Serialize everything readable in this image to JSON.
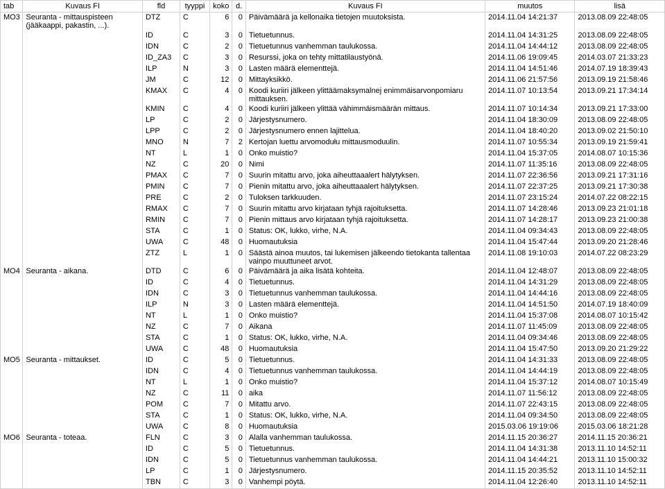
{
  "headers": {
    "tab": "tab",
    "kuvaus1": "Kuvaus FI",
    "fld": "fld",
    "tyyppi": "tyyppi",
    "koko": "koko",
    "d": "d.",
    "kuvaus2": "Kuvaus FI",
    "muutos": "muutos",
    "lisa": "lisä"
  },
  "rows": [
    {
      "tab": "MO3",
      "kuvaus1": "Seuranta - mittauspisteen (jääkaappi, pakastin, ...).",
      "fld": "DTZ",
      "tyyppi": "C",
      "koko": "6",
      "d": "0",
      "kuvaus2": "Päivämäärä ja kellonaika tietojen muutoksista.",
      "muutos": "2014.11.04 14:21:37",
      "lisa": "2013.08.09 22:48:05"
    },
    {
      "tab": "",
      "kuvaus1": "",
      "fld": "ID",
      "tyyppi": "C",
      "koko": "3",
      "d": "0",
      "kuvaus2": "Tietuetunnus.",
      "muutos": "2014.11.04 14:31:25",
      "lisa": "2013.08.09 22:48:05"
    },
    {
      "tab": "",
      "kuvaus1": "",
      "fld": "IDN",
      "tyyppi": "C",
      "koko": "2",
      "d": "0",
      "kuvaus2": "Tietuetunnus vanhemman taulukossa.",
      "muutos": "2014.11.04 14:44:12",
      "lisa": "2013.08.09 22:48:05"
    },
    {
      "tab": "",
      "kuvaus1": "",
      "fld": "ID_ZA3",
      "tyyppi": "C",
      "koko": "3",
      "d": "0",
      "kuvaus2": "Resurssi, joka on tehty mittatilaustyönä.",
      "muutos": "2014.11.06 19:09:45",
      "lisa": "2014.03.07 21:33:23"
    },
    {
      "tab": "",
      "kuvaus1": "",
      "fld": "ILP",
      "tyyppi": "N",
      "koko": "3",
      "d": "0",
      "kuvaus2": "Lasten määrä elementtejä.",
      "muutos": "2014.11.04 14:51:46",
      "lisa": "2014.07.19 18:39:43"
    },
    {
      "tab": "",
      "kuvaus1": "",
      "fld": "JM",
      "tyyppi": "C",
      "koko": "12",
      "d": "0",
      "kuvaus2": "Mittayksikkö.",
      "muutos": "2014.11.06 21:57:56",
      "lisa": "2013.09.19 21:58:46"
    },
    {
      "tab": "",
      "kuvaus1": "",
      "fld": "KMAX",
      "tyyppi": "C",
      "koko": "4",
      "d": "0",
      "kuvaus2": "Koodi kuriiri jälkeen ylittäämaksymalnej enimmäisarvonpomiaru mittauksen.",
      "muutos": "2014.11.07 10:13:54",
      "lisa": "2013.09.21 17:34:14"
    },
    {
      "tab": "",
      "kuvaus1": "",
      "fld": "KMIN",
      "tyyppi": "C",
      "koko": "4",
      "d": "0",
      "kuvaus2": "Koodi kuriiri jälkeen ylittää vähimmäismäärän mittaus.",
      "muutos": "2014.11.07 10:14:34",
      "lisa": "2013.09.21 17:33:00"
    },
    {
      "tab": "",
      "kuvaus1": "",
      "fld": "LP",
      "tyyppi": "C",
      "koko": "2",
      "d": "0",
      "kuvaus2": "Järjestysnumero.",
      "muutos": "2014.11.04 18:30:09",
      "lisa": "2013.08.09 22:48:05"
    },
    {
      "tab": "",
      "kuvaus1": "",
      "fld": "LPP",
      "tyyppi": "C",
      "koko": "2",
      "d": "0",
      "kuvaus2": "Järjestysnumero ennen lajittelua.",
      "muutos": "2014.11.04 18:40:20",
      "lisa": "2013.09.02 21:50:10"
    },
    {
      "tab": "",
      "kuvaus1": "",
      "fld": "MNO",
      "tyyppi": "N",
      "koko": "7",
      "d": "2",
      "kuvaus2": "Kertojan luettu arvomodułu mittausmoduulin.",
      "muutos": "2014.11.07 10:55:34",
      "lisa": "2013.09.19 21:59:41"
    },
    {
      "tab": "",
      "kuvaus1": "",
      "fld": "NT",
      "tyyppi": "L",
      "koko": "1",
      "d": "0",
      "kuvaus2": "Onko muistio?",
      "muutos": "2014.11.04 15:37:05",
      "lisa": "2014.08.07 10:15:36"
    },
    {
      "tab": "",
      "kuvaus1": "",
      "fld": "NZ",
      "tyyppi": "C",
      "koko": "20",
      "d": "0",
      "kuvaus2": "Nimi",
      "muutos": "2014.11.07 11:35:16",
      "lisa": "2013.08.09 22:48:05"
    },
    {
      "tab": "",
      "kuvaus1": "",
      "fld": "PMAX",
      "tyyppi": "C",
      "koko": "7",
      "d": "0",
      "kuvaus2": "Suurin mitattu arvo, joka aiheuttaaalert hälytyksen.",
      "muutos": "2014.11.07 22:36:56",
      "lisa": "2013.09.21 17:31:16"
    },
    {
      "tab": "",
      "kuvaus1": "",
      "fld": "PMIN",
      "tyyppi": "C",
      "koko": "7",
      "d": "0",
      "kuvaus2": "Pienin mitattu arvo, joka aiheuttaaalert hälytyksen.",
      "muutos": "2014.11.07 22:37:25",
      "lisa": "2013.09.21 17:30:38"
    },
    {
      "tab": "",
      "kuvaus1": "",
      "fld": "PRE",
      "tyyppi": "C",
      "koko": "2",
      "d": "0",
      "kuvaus2": "Tuloksen tarkkuuden.",
      "muutos": "2014.11.07 23:15:24",
      "lisa": "2014.07.22 08:22:15"
    },
    {
      "tab": "",
      "kuvaus1": "",
      "fld": "RMAX",
      "tyyppi": "C",
      "koko": "7",
      "d": "0",
      "kuvaus2": "Suurin mitattu arvo kirjataan tyhjä rajoituksetta.",
      "muutos": "2014.11.07 14:28:46",
      "lisa": "2013.09.23 21:01:18"
    },
    {
      "tab": "",
      "kuvaus1": "",
      "fld": "RMIN",
      "tyyppi": "C",
      "koko": "7",
      "d": "0",
      "kuvaus2": "Pienin mittaus arvo kirjataan tyhjä rajoituksetta.",
      "muutos": "2014.11.07 14:28:17",
      "lisa": "2013.09.23 21:00:38"
    },
    {
      "tab": "",
      "kuvaus1": "",
      "fld": "STA",
      "tyyppi": "C",
      "koko": "1",
      "d": "0",
      "kuvaus2": "Status: OK, lukko, virhe, N.A.",
      "muutos": "2014.11.04 09:34:43",
      "lisa": "2013.08.09 22:48:05"
    },
    {
      "tab": "",
      "kuvaus1": "",
      "fld": "UWA",
      "tyyppi": "C",
      "koko": "48",
      "d": "0",
      "kuvaus2": "Huomautuksia",
      "muutos": "2014.11.04 15:47:44",
      "lisa": "2013.09.20 21:28:46"
    },
    {
      "tab": "",
      "kuvaus1": "",
      "fld": "ZTZ",
      "tyyppi": "L",
      "koko": "1",
      "d": "0",
      "kuvaus2": "Säästä ainoa muutos, tai lukemisen jälkeendo tietokanta tallentaa vainpo muuttuneet arvot.",
      "muutos": "2014.11.08 19:10:03",
      "lisa": "2014.07.22 08:23:29"
    },
    {
      "tab": "MO4",
      "kuvaus1": "Seuranta - aikana.",
      "fld": "DTD",
      "tyyppi": "C",
      "koko": "6",
      "d": "0",
      "kuvaus2": "Päivämäärä ja aika lisätä kohteita.",
      "muutos": "2014.11.04 12:48:07",
      "lisa": "2013.08.09 22:48:05"
    },
    {
      "tab": "",
      "kuvaus1": "",
      "fld": "ID",
      "tyyppi": "C",
      "koko": "4",
      "d": "0",
      "kuvaus2": "Tietuetunnus.",
      "muutos": "2014.11.04 14:31:29",
      "lisa": "2013.08.09 22:48:05"
    },
    {
      "tab": "",
      "kuvaus1": "",
      "fld": "IDN",
      "tyyppi": "C",
      "koko": "3",
      "d": "0",
      "kuvaus2": "Tietuetunnus vanhemman taulukossa.",
      "muutos": "2014.11.04 14:44:16",
      "lisa": "2013.08.09 22:48:05"
    },
    {
      "tab": "",
      "kuvaus1": "",
      "fld": "ILP",
      "tyyppi": "N",
      "koko": "3",
      "d": "0",
      "kuvaus2": "Lasten määrä elementtejä.",
      "muutos": "2014.11.04 14:51:50",
      "lisa": "2014.07.19 18:40:09"
    },
    {
      "tab": "",
      "kuvaus1": "",
      "fld": "NT",
      "tyyppi": "L",
      "koko": "1",
      "d": "0",
      "kuvaus2": "Onko muistio?",
      "muutos": "2014.11.04 15:37:08",
      "lisa": "2014.08.07 10:15:42"
    },
    {
      "tab": "",
      "kuvaus1": "",
      "fld": "NZ",
      "tyyppi": "C",
      "koko": "7",
      "d": "0",
      "kuvaus2": "Aikana",
      "muutos": "2014.11.07 11:45:09",
      "lisa": "2013.08.09 22:48:05"
    },
    {
      "tab": "",
      "kuvaus1": "",
      "fld": "STA",
      "tyyppi": "C",
      "koko": "1",
      "d": "0",
      "kuvaus2": "Status: OK, lukko, virhe, N.A.",
      "muutos": "2014.11.04 09:34:46",
      "lisa": "2013.08.09 22:48:05"
    },
    {
      "tab": "",
      "kuvaus1": "",
      "fld": "UWA",
      "tyyppi": "C",
      "koko": "48",
      "d": "0",
      "kuvaus2": "Huomautuksia",
      "muutos": "2014.11.04 15:47:50",
      "lisa": "2013.09.20 21:29:22"
    },
    {
      "tab": "MO5",
      "kuvaus1": "Seuranta - mittaukset.",
      "fld": "ID",
      "tyyppi": "C",
      "koko": "5",
      "d": "0",
      "kuvaus2": "Tietuetunnus.",
      "muutos": "2014.11.04 14:31:33",
      "lisa": "2013.08.09 22:48:05"
    },
    {
      "tab": "",
      "kuvaus1": "",
      "fld": "IDN",
      "tyyppi": "C",
      "koko": "4",
      "d": "0",
      "kuvaus2": "Tietuetunnus vanhemman taulukossa.",
      "muutos": "2014.11.04 14:44:19",
      "lisa": "2013.08.09 22:48:05"
    },
    {
      "tab": "",
      "kuvaus1": "",
      "fld": "NT",
      "tyyppi": "L",
      "koko": "1",
      "d": "0",
      "kuvaus2": "Onko muistio?",
      "muutos": "2014.11.04 15:37:12",
      "lisa": "2014.08.07 10:15:49"
    },
    {
      "tab": "",
      "kuvaus1": "",
      "fld": "NZ",
      "tyyppi": "C",
      "koko": "11",
      "d": "0",
      "kuvaus2": "aika",
      "muutos": "2014.11.07 11:56:12",
      "lisa": "2013.08.09 22:48:05"
    },
    {
      "tab": "",
      "kuvaus1": "",
      "fld": "POM",
      "tyyppi": "C",
      "koko": "7",
      "d": "0",
      "kuvaus2": "Mitattu arvo.",
      "muutos": "2014.11.07 22:43:15",
      "lisa": "2013.08.09 22:48:05"
    },
    {
      "tab": "",
      "kuvaus1": "",
      "fld": "STA",
      "tyyppi": "C",
      "koko": "1",
      "d": "0",
      "kuvaus2": "Status: OK, lukko, virhe, N.A.",
      "muutos": "2014.11.04 09:34:50",
      "lisa": "2013.08.09 22:48:05"
    },
    {
      "tab": "",
      "kuvaus1": "",
      "fld": "UWA",
      "tyyppi": "C",
      "koko": "8",
      "d": "0",
      "kuvaus2": "Huomautuksia",
      "muutos": "2015.03.06 19:19:06",
      "lisa": "2015.03.06 18:21:28"
    },
    {
      "tab": "MO6",
      "kuvaus1": "Seuranta - toteaa.",
      "fld": "FLN",
      "tyyppi": "C",
      "koko": "3",
      "d": "0",
      "kuvaus2": "Alalla vanhemman taulukossa.",
      "muutos": "2014.11.15 20:36:27",
      "lisa": "2014.11.15 20:36:21"
    },
    {
      "tab": "",
      "kuvaus1": "",
      "fld": "ID",
      "tyyppi": "C",
      "koko": "5",
      "d": "0",
      "kuvaus2": "Tietuetunnus.",
      "muutos": "2014.11.04 14:31:38",
      "lisa": "2013.11.10 14:52:11"
    },
    {
      "tab": "",
      "kuvaus1": "",
      "fld": "IDN",
      "tyyppi": "C",
      "koko": "5",
      "d": "0",
      "kuvaus2": "Tietuetunnus vanhemman taulukossa.",
      "muutos": "2014.11.04 14:44:21",
      "lisa": "2013.11.10 15:00:32"
    },
    {
      "tab": "",
      "kuvaus1": "",
      "fld": "LP",
      "tyyppi": "C",
      "koko": "1",
      "d": "0",
      "kuvaus2": "Järjestysnumero.",
      "muutos": "2014.11.15 20:35:52",
      "lisa": "2013.11.10 14:52:11"
    },
    {
      "tab": "",
      "kuvaus1": "",
      "fld": "TBN",
      "tyyppi": "C",
      "koko": "3",
      "d": "0",
      "kuvaus2": "Vanhempi pöytä.",
      "muutos": "2014.11.04 12:26:40",
      "lisa": "2013.11.10 14:52:11"
    }
  ]
}
